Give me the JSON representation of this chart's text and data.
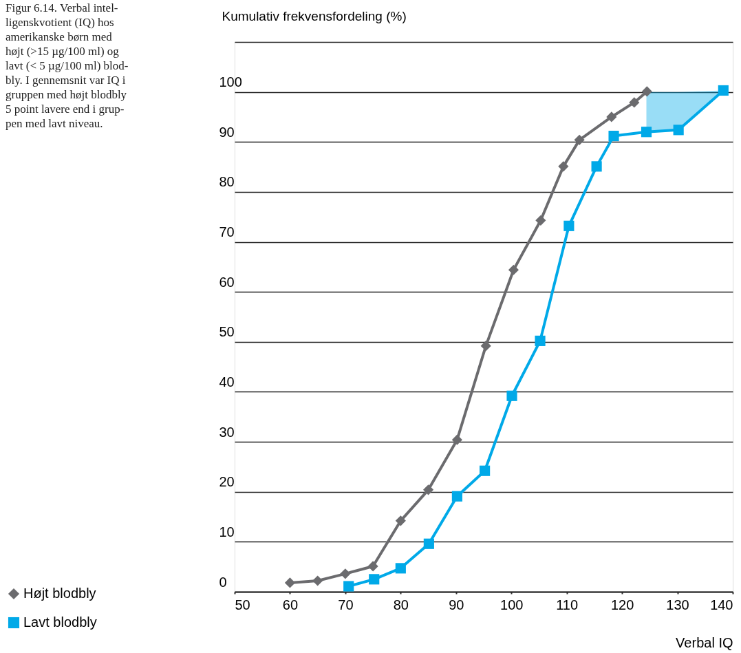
{
  "chart_data": {
    "type": "line",
    "title": "Figur 6.14. Verbal intel-\nligenskvotient (IQ) hos\namerikanske børn med\nhøjt (>15 µg/100 ml) og\nlavt (< 5 µg/100 ml) blod-\nbly. I gennemsnit var IQ i\ngruppen med højt blodbly\n5 point lavere end i grup-\npen med lavt niveau.",
    "ylabel": "Kumulativ frekvensfordeling (%)",
    "xlabel": "Verbal IQ",
    "xlim": [
      50,
      140
    ],
    "xticks": [
      50,
      60,
      70,
      80,
      90,
      100,
      110,
      120,
      130,
      140
    ],
    "ylim": [
      0,
      110
    ],
    "yticks": [
      0,
      10,
      20,
      30,
      40,
      50,
      60,
      70,
      80,
      90,
      100,
      {
        "value": 110,
        "label": null
      }
    ],
    "grid": "y",
    "legend": "bottom left",
    "line_style": "solid",
    "series": [
      {
        "name": "Højt blodbly",
        "color": "#6b6b6e",
        "marker": "diamond",
        "x": [
          60,
          65,
          70,
          75,
          80,
          85,
          90.2,
          95.4,
          100.4,
          105.3,
          109.4,
          112.3,
          118.1,
          122.2,
          124.5
        ],
        "values": [
          1.8,
          2.2,
          3.6,
          5.1,
          14.2,
          20.4,
          30.4,
          49.2,
          64.4,
          74.3,
          85.1,
          90.4,
          95.0,
          97.9,
          100.1
        ]
      },
      {
        "name": "Lavt blodbly",
        "color": "#00a9e8",
        "marker": "square",
        "x": [
          70.6,
          75.2,
          80,
          85.1,
          90.2,
          95.2,
          100.1,
          105.2,
          110.4,
          115.4,
          118.5,
          124.4,
          130.2,
          138.3
        ],
        "values": [
          1.1,
          2.5,
          4.7,
          9.6,
          19.1,
          24.2,
          39.2,
          50.2,
          73.2,
          85.1,
          91.2,
          92.0,
          92.4,
          100.3
        ],
        "upper": [
          null,
          null,
          null,
          null,
          null,
          null,
          null,
          null,
          null,
          null,
          null,
          100,
          100,
          100.3
        ],
        "lower": [
          null,
          null,
          null,
          null,
          null,
          null,
          null,
          null,
          null,
          null,
          null,
          92.0,
          92.4,
          100.3
        ]
      }
    ]
  }
}
